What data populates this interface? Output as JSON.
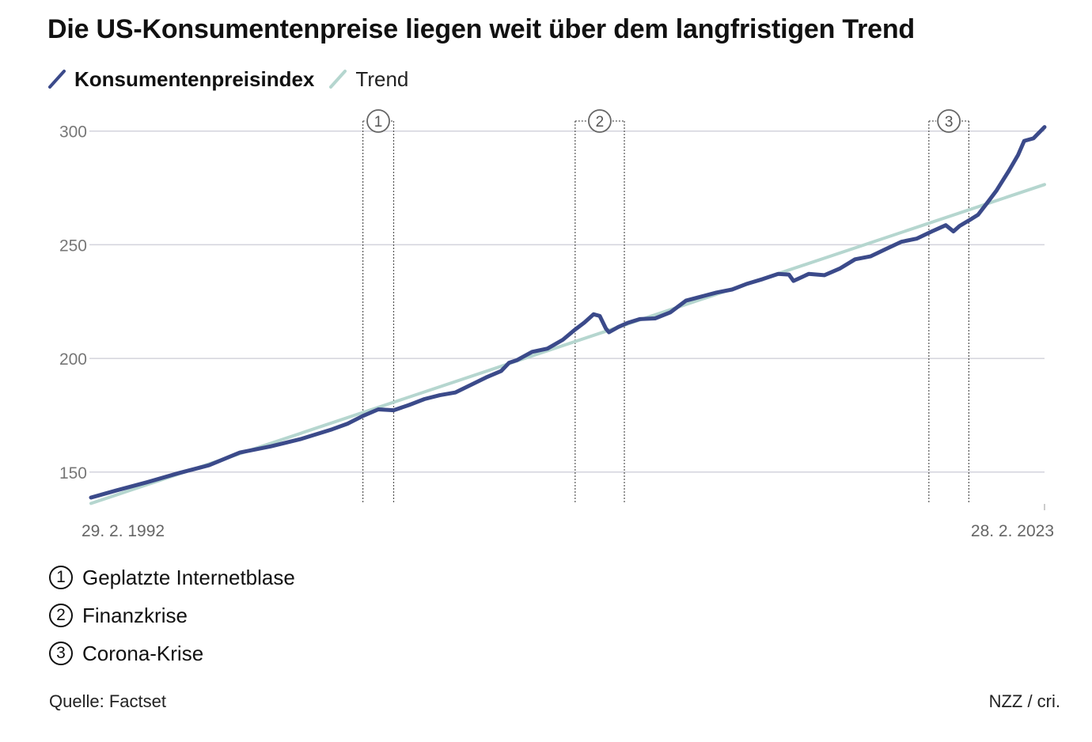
{
  "title": "Die US-Konsumentenpreise liegen weit über dem langfristigen Trend",
  "legend": [
    {
      "label": "Konsumentenpreisindex",
      "color": "#3b4a8a"
    },
    {
      "label": "Trend",
      "color": "#b5d6cf"
    }
  ],
  "annotations": [
    {
      "num": "1",
      "label": "Geplatzte Internetblase"
    },
    {
      "num": "2",
      "label": "Finanzkrise"
    },
    {
      "num": "3",
      "label": "Corona-Krise"
    }
  ],
  "source": "Quelle: Factset",
  "credit": "NZZ / cri.",
  "chart_data": {
    "type": "line",
    "title": "Die US-Konsumentenpreise liegen weit über dem langfristigen Trend",
    "xlabel": "",
    "ylabel": "",
    "xlim": [
      1992.16,
      2023.16
    ],
    "ylim": [
      136,
      310
    ],
    "yticks": [
      150,
      200,
      250,
      300
    ],
    "x_tick_labels": [
      {
        "x": 1992.16,
        "label": "29. 2. 1992"
      },
      {
        "x": 2023.16,
        "label": "28. 2. 2023"
      }
    ],
    "grid": true,
    "legend_position": "top-left",
    "periods": [
      {
        "label": "1",
        "start": 2001.0,
        "end": 2002.0
      },
      {
        "label": "2",
        "start": 2007.9,
        "end": 2009.5
      },
      {
        "label": "3",
        "start": 2019.4,
        "end": 2020.7
      }
    ],
    "series": [
      {
        "name": "Konsumentenpreisindex",
        "color": "#3b4a8a",
        "x": [
          1992.16,
          1993.0,
          1994.0,
          1995.0,
          1996.0,
          1997.0,
          1998.0,
          1999.0,
          2000.0,
          2000.5,
          2001.0,
          2001.5,
          2002.0,
          2002.5,
          2003.0,
          2003.5,
          2004.0,
          2004.5,
          2005.0,
          2005.5,
          2005.75,
          2006.0,
          2006.5,
          2007.0,
          2007.5,
          2007.9,
          2008.2,
          2008.5,
          2008.7,
          2008.9,
          2009.0,
          2009.3,
          2009.6,
          2010.0,
          2010.5,
          2011.0,
          2011.5,
          2012.0,
          2012.5,
          2013.0,
          2013.5,
          2014.0,
          2014.5,
          2014.85,
          2015.0,
          2015.5,
          2016.0,
          2016.5,
          2017.0,
          2017.5,
          2018.0,
          2018.5,
          2019.0,
          2019.5,
          2019.95,
          2020.2,
          2020.4,
          2020.7,
          2021.0,
          2021.3,
          2021.6,
          2022.0,
          2022.3,
          2022.5,
          2022.8,
          2023.16
        ],
        "values": [
          138.8,
          142.0,
          145.6,
          149.5,
          153.0,
          158.6,
          161.3,
          164.6,
          168.8,
          171.3,
          174.7,
          177.6,
          177.2,
          179.5,
          182.1,
          183.8,
          185.0,
          188.3,
          191.6,
          194.5,
          198.1,
          199.2,
          202.9,
          204.3,
          208.2,
          212.7,
          215.8,
          219.4,
          218.7,
          213.1,
          211.5,
          213.8,
          215.6,
          217.3,
          217.6,
          220.3,
          225.4,
          227.2,
          229.0,
          230.3,
          232.9,
          234.9,
          237.2,
          236.9,
          234.1,
          237.2,
          236.6,
          239.5,
          243.6,
          244.9,
          248.1,
          251.3,
          252.7,
          255.9,
          258.6,
          255.9,
          258.3,
          260.7,
          263.2,
          268.5,
          273.9,
          282.5,
          289.5,
          295.7,
          296.8,
          301.8
        ]
      },
      {
        "name": "Trend",
        "color": "#b5d6cf",
        "x": [
          1992.16,
          2023.16
        ],
        "values": [
          136.2,
          276.5
        ]
      }
    ]
  }
}
